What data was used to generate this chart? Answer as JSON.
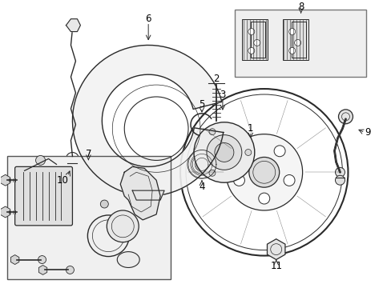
{
  "bg_color": "#ffffff",
  "line_color": "#2a2a2a",
  "light_fill": "#eeeeee",
  "box_fill": "#f0f0f0",
  "figsize": [
    4.89,
    3.6
  ],
  "dpi": 100
}
